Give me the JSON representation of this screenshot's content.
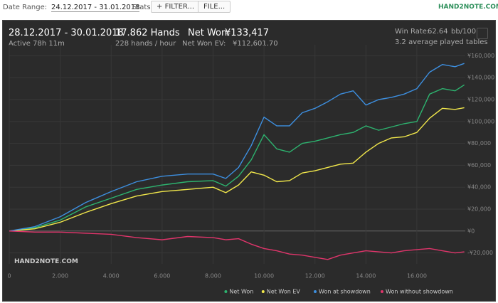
{
  "toolbar": {
    "date_range_label": "Date Range:",
    "date_range": "24.12.2017 - 31.01.2018",
    "stats_label": "Stats:",
    "filter_button": "FILTER...",
    "file_button": "FILE...",
    "logo": "HAND2NOTE.COM"
  },
  "summary": {
    "period": "28.12.2017 - 30.01.2018",
    "active": "Active 78h 11m",
    "hands": "17.862 Hands",
    "hands_per_hour": "228 hands / hour",
    "net_won_label": "Net Won:",
    "net_won": "¥133,417",
    "net_won_ev_label": "Net Won  EV:",
    "net_won_ev": "¥112,601.70",
    "win_rate_label": "Win Rate:",
    "win_rate": "62.64",
    "win_rate_unit": "bb/100",
    "tables": "3.2 average played tables"
  },
  "watermark": "HAND2NOTE.COM",
  "chart_data": {
    "type": "line",
    "x": [
      0,
      1000,
      2000,
      3000,
      4000,
      5000,
      6000,
      7000,
      8000,
      8500,
      9000,
      9500,
      10000,
      10500,
      11000,
      11500,
      12000,
      12500,
      13000,
      13500,
      14000,
      14500,
      15000,
      15500,
      16000,
      16500,
      17000,
      17500,
      17862
    ],
    "series": [
      {
        "name": "Net Won",
        "color": "#2db36f",
        "values": [
          0,
          3000,
          10000,
          22000,
          30000,
          38000,
          42000,
          45000,
          46000,
          41000,
          50000,
          65000,
          88000,
          75000,
          72000,
          80000,
          82000,
          85000,
          88000,
          90000,
          96000,
          92000,
          95000,
          98000,
          100000,
          125000,
          130000,
          128000,
          133417
        ]
      },
      {
        "name": "Net Won  EV",
        "color": "#f2e84b",
        "values": [
          0,
          2000,
          8000,
          17000,
          25000,
          32000,
          36000,
          38000,
          40000,
          35000,
          42000,
          54000,
          51000,
          45000,
          46000,
          53000,
          55000,
          58000,
          61000,
          62000,
          72000,
          80000,
          85000,
          86000,
          90000,
          103000,
          112000,
          111000,
          112601.7
        ]
      },
      {
        "name": "Won at showdown",
        "color": "#3d8fe0",
        "values": [
          0,
          4000,
          13000,
          26000,
          36000,
          45000,
          50000,
          52000,
          52000,
          48000,
          58000,
          78000,
          104000,
          96000,
          96000,
          108000,
          112000,
          118000,
          125000,
          128000,
          115000,
          120000,
          122000,
          125000,
          130000,
          145000,
          152000,
          150000,
          153000
        ]
      },
      {
        "name": "Won without showdown",
        "color": "#e0356b",
        "values": [
          0,
          -1000,
          -1000,
          -2000,
          -3000,
          -6000,
          -8000,
          -5000,
          -6000,
          -8000,
          -7000,
          -12000,
          -16000,
          -18000,
          -21000,
          -22000,
          -24000,
          -26000,
          -22000,
          -20000,
          -18000,
          -19000,
          -20000,
          -18000,
          -17000,
          -16000,
          -18000,
          -20000,
          -19000
        ]
      }
    ],
    "xlim": [
      0,
      17900
    ],
    "xticks": [
      0,
      {
        "value": 2000,
        "label": "2.000"
      },
      {
        "value": 4000,
        "label": "4.000"
      },
      {
        "value": 6000,
        "label": "6.000"
      },
      {
        "value": 8000,
        "label": "8.000"
      },
      {
        "value": 10000,
        "label": "10.000"
      },
      {
        "value": 12000,
        "label": "12.000"
      },
      {
        "value": 14000,
        "label": "14.000"
      },
      {
        "value": 16000,
        "label": "16.000"
      }
    ],
    "ylim": [
      -30000,
      170000
    ],
    "yticks": [
      {
        "value": -20000,
        "label": "-¥20,000"
      },
      {
        "value": 0,
        "label": "¥0"
      },
      {
        "value": 20000,
        "label": "¥20,000"
      },
      {
        "value": 40000,
        "label": "¥40,000"
      },
      {
        "value": 60000,
        "label": "¥60,000"
      },
      {
        "value": 80000,
        "label": "¥80,000"
      },
      {
        "value": 100000,
        "label": "¥100,000"
      },
      {
        "value": 120000,
        "label": "¥120,000"
      },
      {
        "value": 140000,
        "label": "¥140,000"
      },
      {
        "value": 160000,
        "label": "¥160,000"
      }
    ],
    "grid": true,
    "legend": "bottom-right"
  }
}
